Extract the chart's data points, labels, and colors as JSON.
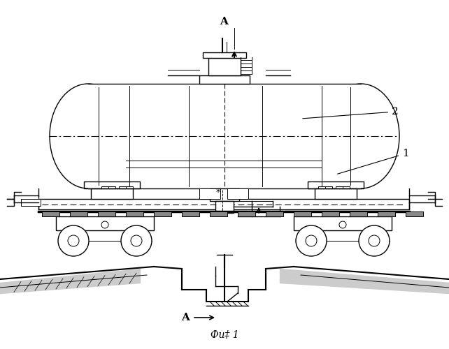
{
  "fig_width": 6.42,
  "fig_height": 5.0,
  "dpi": 100,
  "bg_color": "#ffffff",
  "line_color": "#000000",
  "caption": "Фи‡ 1",
  "label_A": "A",
  "label_1": "1",
  "label_2": "2"
}
